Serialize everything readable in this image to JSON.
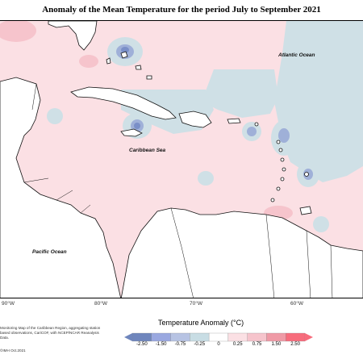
{
  "title": "Anomaly of the Mean Temperature for the period July to September 2021",
  "labels": {
    "atlantic": "Atlantic Ocean",
    "caribbean": "Caribbean Sea",
    "pacific": "Pacific Ocean"
  },
  "longitudes": [
    "90°W",
    "80°W",
    "70°W",
    "60°W"
  ],
  "credit": "Monitoring Map of the Caribbean Region, aggregating station based observations, CariCOF, with NCEP/NCAR Reanalysis Data.",
  "copyright": "©IMH Oct.2021",
  "legend": {
    "title": "Temperature Anomaly (°C)",
    "ticks": [
      "-2.50",
      "-1.50",
      "-0.75",
      "-0.25",
      "0",
      "0.25",
      "0.75",
      "1.50",
      "2.50"
    ],
    "colors": [
      "#6f86bd",
      "#9aa8e0",
      "#b7c3e3",
      "#c8dde4",
      "#ffffff",
      "#fbe0e4",
      "#f6c4cc",
      "#ef9aa6",
      "#f76c7c"
    ]
  },
  "colors": {
    "warm": "#fbe0e4",
    "cool": "#cfe0e6",
    "land": "#ffffff",
    "coast": "#111111"
  }
}
